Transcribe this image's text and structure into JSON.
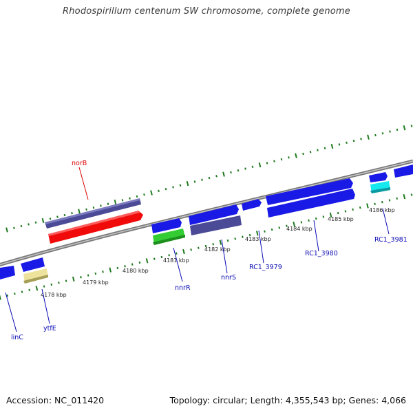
{
  "title": "Rhodospirillum centenum SW chromosome, complete genome",
  "footer": {
    "accession": "Accession: NC_011420",
    "summary": "Topology: circular; Length: 4,355,543 bp; Genes: 4,066"
  },
  "colors": {
    "backbone": "#8c8c8c",
    "tick": "#1e7a1e",
    "gene_blue": "#1a1ae6",
    "gene_purple": "#4b4a96",
    "gene_red": "#f00a0a",
    "gene_green": "#33cc33",
    "gene_khaki": "#eee39c",
    "gene_cyan": "#16e8f0",
    "label_blue": "#0a0ab4",
    "label_red": "#dc0000"
  },
  "scale_labels": [
    "4178 kbp",
    "4179 kbp",
    "4180 kbp",
    "4181 kbp",
    "4182 kbp",
    "4183 kbp",
    "4184 kbp",
    "4185 kbp",
    "4186 kbp"
  ],
  "gene_labels": [
    {
      "name": "norB",
      "color": "red"
    },
    {
      "name": "linC",
      "color": "blue"
    },
    {
      "name": "ytfE",
      "color": "blue"
    },
    {
      "name": "nnrR",
      "color": "blue"
    },
    {
      "name": "nnrS",
      "color": "blue"
    },
    {
      "name": "RC1_3979",
      "color": "blue"
    },
    {
      "name": "RC1_3980",
      "color": "blue"
    },
    {
      "name": "RC1_3981",
      "color": "blue"
    }
  ]
}
